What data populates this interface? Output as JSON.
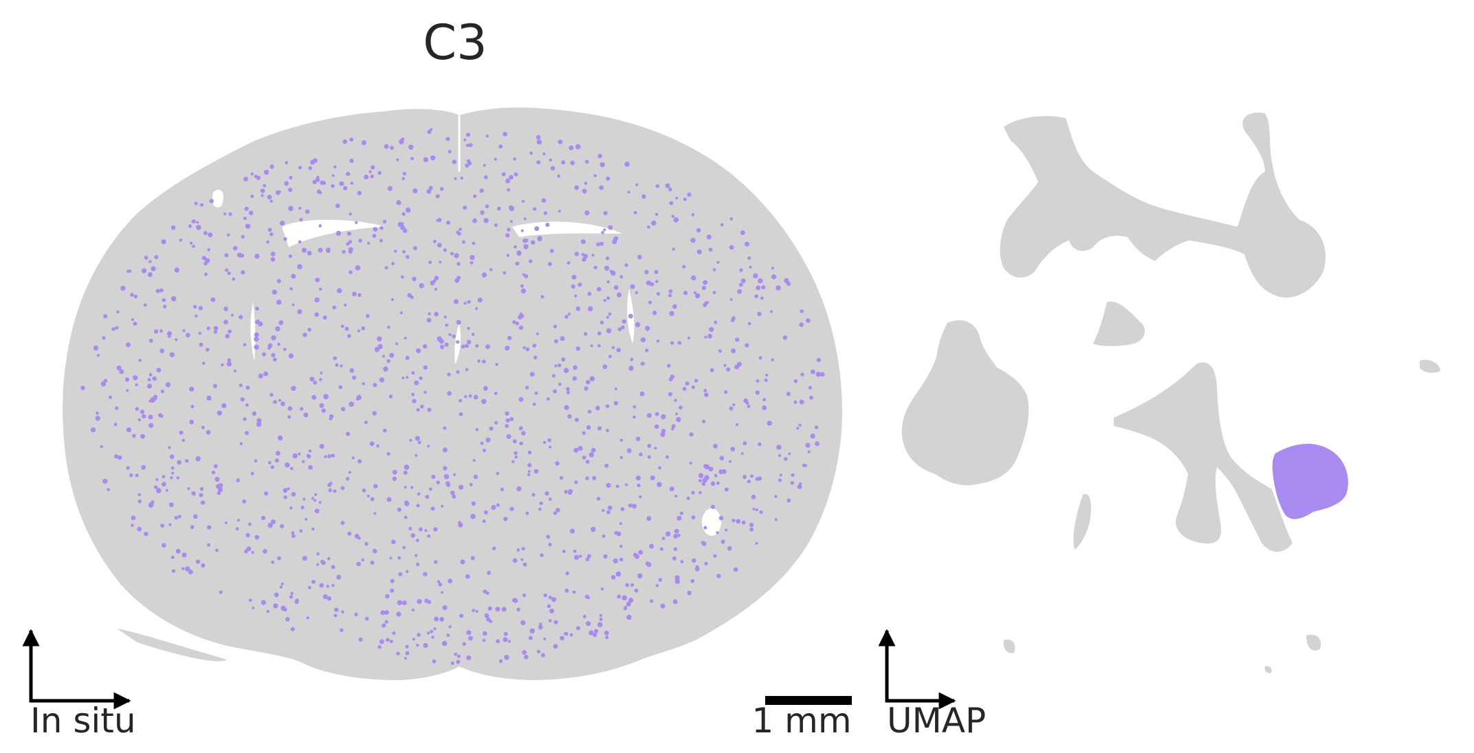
{
  "title": "C3",
  "insitu_label": "In situ",
  "scalebar_label": "1 mm",
  "umap_label": "UMAP",
  "colors": {
    "background_cells": "#d3d3d3",
    "highlight_cells": "#a98af0",
    "text": "#262626",
    "axes": "#000000"
  }
}
